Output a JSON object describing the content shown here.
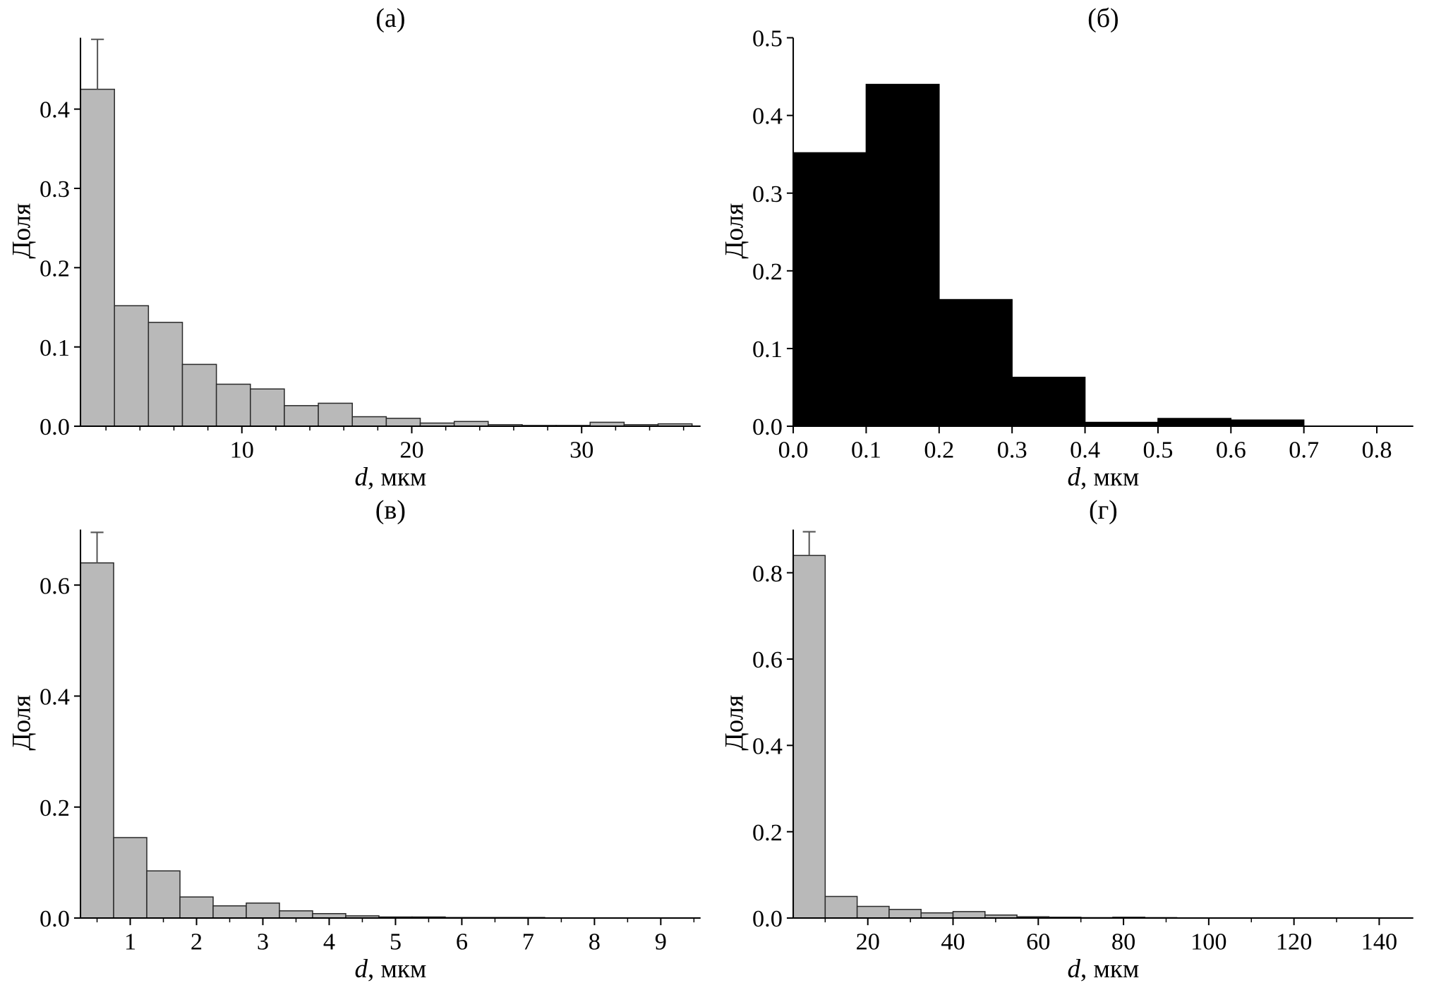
{
  "figure": {
    "background": "#ffffff",
    "axis_color": "#000000",
    "error_bar_color": "#555555"
  },
  "chart_data": [
    {
      "id": "a",
      "type": "bar",
      "title": "(а)",
      "ylabel": "Доля",
      "xlabel_var": "d",
      "xlabel_unit": ", мкм",
      "bar_color": "#b9b9b9",
      "bar_edge": "#2b2b2b",
      "bin_start": 0.5,
      "bin_width": 2,
      "values": [
        0.425,
        0.152,
        0.131,
        0.078,
        0.053,
        0.047,
        0.026,
        0.029,
        0.012,
        0.01,
        0.004,
        0.006,
        0.002,
        0.001,
        0.001,
        0.005,
        0.002,
        0.003
      ],
      "xlim": [
        0.5,
        37
      ],
      "xticks": [
        10,
        20,
        30
      ],
      "xtick_labels": [
        "10",
        "20",
        "30"
      ],
      "xminor_step": 2,
      "ylim": [
        0,
        0.49
      ],
      "yticks": [
        0.0,
        0.1,
        0.2,
        0.3,
        0.4
      ],
      "ytick_labels": [
        "0.0",
        "0.1",
        "0.2",
        "0.3",
        "0.4"
      ],
      "error_bar": {
        "bin_index": 0,
        "top": 0.488
      }
    },
    {
      "id": "b",
      "type": "bar",
      "title": "(б)",
      "ylabel": "Доля",
      "xlabel_var": "d",
      "xlabel_unit": ", мкм",
      "bar_color": "#000000",
      "bar_edge": "#000000",
      "bin_start": 0.0,
      "bin_width": 0.1,
      "values": [
        0.352,
        0.44,
        0.163,
        0.063,
        0.005,
        0.01,
        0.008
      ],
      "xlim": [
        0,
        0.85
      ],
      "xticks": [
        0.0,
        0.1,
        0.2,
        0.3,
        0.4,
        0.5,
        0.6,
        0.7,
        0.8
      ],
      "xtick_labels": [
        "0.0",
        "0.1",
        "0.2",
        "0.3",
        "0.4",
        "0.5",
        "0.6",
        "0.7",
        "0.8"
      ],
      "xminor_step": null,
      "ylim": [
        0,
        0.5
      ],
      "yticks": [
        0.0,
        0.1,
        0.2,
        0.3,
        0.4,
        0.5
      ],
      "ytick_labels": [
        "0.0",
        "0.1",
        "0.2",
        "0.3",
        "0.4",
        "0.5"
      ],
      "error_bar": null
    },
    {
      "id": "v",
      "type": "bar",
      "title": "(в)",
      "ylabel": "Доля",
      "xlabel_var": "d",
      "xlabel_unit": ", мкм",
      "bar_color": "#b9b9b9",
      "bar_edge": "#2b2b2b",
      "bin_start": 0.25,
      "bin_width": 0.5,
      "values": [
        0.64,
        0.145,
        0.085,
        0.038,
        0.022,
        0.027,
        0.013,
        0.008,
        0.004,
        0.002,
        0.002,
        0.001,
        0.001,
        0.001
      ],
      "xlim": [
        0.25,
        9.6
      ],
      "xticks": [
        1,
        2,
        3,
        4,
        5,
        6,
        7,
        8,
        9
      ],
      "xtick_labels": [
        "1",
        "2",
        "3",
        "4",
        "5",
        "6",
        "7",
        "8",
        "9"
      ],
      "xminor_step": 0.5,
      "ylim": [
        0,
        0.7
      ],
      "yticks": [
        0.0,
        0.2,
        0.4,
        0.6
      ],
      "ytick_labels": [
        "0.0",
        "0.2",
        "0.4",
        "0.6"
      ],
      "error_bar": {
        "bin_index": 0,
        "top": 0.695
      }
    },
    {
      "id": "g",
      "type": "bar",
      "title": "(г)",
      "ylabel": "Доля",
      "xlabel_var": "d",
      "xlabel_unit": ", мкм",
      "bar_color": "#b9b9b9",
      "bar_edge": "#2b2b2b",
      "bin_start": 2.5,
      "bin_width": 7.5,
      "values": [
        0.84,
        0.05,
        0.027,
        0.02,
        0.012,
        0.015,
        0.007,
        0.003,
        0.002,
        0.001,
        0.002,
        0.001
      ],
      "xlim": [
        2.5,
        148
      ],
      "xticks": [
        20,
        40,
        60,
        80,
        100,
        120,
        140
      ],
      "xtick_labels": [
        "20",
        "40",
        "60",
        "80",
        "100",
        "120",
        "140"
      ],
      "xminor_step": 10,
      "ylim": [
        0,
        0.9
      ],
      "yticks": [
        0.0,
        0.2,
        0.4,
        0.6,
        0.8
      ],
      "ytick_labels": [
        "0.0",
        "0.2",
        "0.4",
        "0.6",
        "0.8"
      ],
      "error_bar": {
        "bin_index": 0,
        "top": 0.895
      }
    }
  ]
}
